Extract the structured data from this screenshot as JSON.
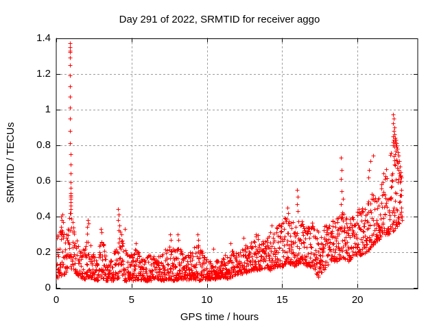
{
  "window": {
    "background": "#ffffff"
  },
  "chart_data": {
    "type": "scatter",
    "title": "Day 291 of 2022, SRMTID for receiver aggo",
    "xlabel": "GPS time / hours",
    "ylabel": "SRMTID / TECUs",
    "xlim": [
      0,
      24
    ],
    "ylim": [
      0,
      1.4
    ],
    "xticks": [
      0,
      5,
      10,
      15,
      20
    ],
    "xtick_labels": [
      "0",
      "5",
      "10",
      "15",
      "20"
    ],
    "yticks": [
      0,
      0.2,
      0.4,
      0.6,
      0.8,
      1.0,
      1.2,
      1.4
    ],
    "ytick_labels": [
      "0",
      "0.2",
      "0.4",
      "0.6",
      "0.8",
      "1",
      "1.2",
      "1.4"
    ],
    "grid": true,
    "legend": "none",
    "marker": "+",
    "marker_size": 7,
    "colors": {
      "points": "#ff0000",
      "axis": "#000000",
      "grid": "#9a9a9a",
      "text": "#000000"
    },
    "data_x_end": 22.95,
    "feature_points": [
      [
        0.9,
        1.37
      ],
      [
        0.91,
        1.35
      ],
      [
        0.9,
        1.33
      ],
      [
        0.91,
        1.32
      ],
      [
        0.9,
        1.29
      ],
      [
        0.91,
        1.25
      ],
      [
        0.91,
        1.19
      ],
      [
        0.92,
        1.13
      ],
      [
        0.92,
        1.07
      ],
      [
        0.92,
        1.01
      ],
      [
        0.93,
        0.95
      ],
      [
        0.93,
        0.88
      ],
      [
        0.93,
        0.81
      ],
      [
        0.94,
        0.75
      ],
      [
        0.94,
        0.69
      ],
      [
        0.94,
        0.64
      ],
      [
        0.95,
        0.59
      ],
      [
        0.95,
        0.56
      ],
      [
        0.95,
        0.53
      ],
      [
        0.96,
        0.52
      ],
      [
        0.95,
        0.51
      ],
      [
        0.96,
        0.5
      ],
      [
        0.96,
        0.48
      ],
      [
        0.95,
        0.46
      ],
      [
        0.97,
        0.44
      ],
      [
        0.96,
        0.42
      ],
      [
        0.33,
        0.4
      ],
      [
        0.4,
        0.41
      ],
      [
        0.36,
        0.38
      ],
      [
        0.45,
        0.37
      ],
      [
        2.08,
        0.38
      ],
      [
        2.12,
        0.36
      ],
      [
        2.05,
        0.34
      ],
      [
        2.98,
        0.33
      ],
      [
        3.02,
        0.31
      ],
      [
        4.12,
        0.44
      ],
      [
        4.16,
        0.41
      ],
      [
        4.1,
        0.38
      ],
      [
        4.2,
        0.35
      ],
      [
        4.55,
        0.33
      ],
      [
        5.3,
        0.25
      ],
      [
        7.58,
        0.3
      ],
      [
        7.62,
        0.27
      ],
      [
        8.08,
        0.3
      ],
      [
        8.12,
        0.27
      ],
      [
        9.38,
        0.3
      ],
      [
        9.42,
        0.27
      ],
      [
        10.45,
        0.22
      ],
      [
        11.55,
        0.25
      ],
      [
        12.45,
        0.28
      ],
      [
        13.25,
        0.3
      ],
      [
        14.3,
        0.35
      ],
      [
        15.35,
        0.45
      ],
      [
        15.38,
        0.42
      ],
      [
        16.0,
        0.55
      ],
      [
        16.02,
        0.51
      ],
      [
        15.98,
        0.47
      ],
      [
        16.01,
        0.43
      ],
      [
        18.92,
        0.73
      ],
      [
        18.94,
        0.66
      ],
      [
        18.9,
        0.61
      ],
      [
        18.93,
        0.54
      ],
      [
        18.91,
        0.47
      ],
      [
        18.95,
        0.41
      ],
      [
        19.05,
        0.5
      ],
      [
        21.05,
        0.74
      ],
      [
        20.85,
        0.71
      ],
      [
        20.75,
        0.66
      ],
      [
        20.7,
        0.62
      ],
      [
        22.38,
        0.97
      ],
      [
        22.4,
        0.95
      ],
      [
        22.42,
        0.95
      ],
      [
        22.37,
        0.92
      ],
      [
        22.44,
        0.9
      ],
      [
        22.4,
        0.88
      ],
      [
        22.46,
        0.86
      ],
      [
        22.36,
        0.85
      ],
      [
        22.5,
        0.84
      ],
      [
        22.42,
        0.83
      ],
      [
        22.55,
        0.83
      ],
      [
        22.38,
        0.82
      ],
      [
        22.48,
        0.82
      ],
      [
        22.6,
        0.81
      ],
      [
        22.44,
        0.81
      ],
      [
        22.52,
        0.8
      ],
      [
        22.35,
        0.8
      ],
      [
        22.58,
        0.79
      ],
      [
        22.47,
        0.79
      ],
      [
        22.63,
        0.78
      ],
      [
        22.55,
        0.77
      ],
      [
        22.68,
        0.76
      ],
      [
        22.5,
        0.75
      ],
      [
        22.72,
        0.74
      ],
      [
        22.6,
        0.72
      ],
      [
        22.78,
        0.71
      ],
      [
        22.66,
        0.7
      ],
      [
        22.82,
        0.68
      ],
      [
        22.74,
        0.66
      ],
      [
        22.86,
        0.65
      ],
      [
        22.8,
        0.63
      ],
      [
        22.88,
        0.62
      ],
      [
        22.84,
        0.6
      ],
      [
        22.9,
        0.55
      ],
      [
        22.92,
        0.52
      ]
    ],
    "band_keypoints": [
      [
        0.0,
        0.05,
        0.33
      ],
      [
        0.15,
        0.06,
        0.3
      ],
      [
        0.35,
        0.07,
        0.36
      ],
      [
        0.6,
        0.08,
        0.28
      ],
      [
        0.9,
        0.12,
        0.42
      ],
      [
        1.1,
        0.1,
        0.38
      ],
      [
        1.3,
        0.08,
        0.28
      ],
      [
        1.6,
        0.06,
        0.2
      ],
      [
        1.9,
        0.05,
        0.24
      ],
      [
        2.1,
        0.06,
        0.34
      ],
      [
        2.4,
        0.05,
        0.2
      ],
      [
        2.7,
        0.04,
        0.18
      ],
      [
        3.0,
        0.05,
        0.3
      ],
      [
        3.3,
        0.04,
        0.18
      ],
      [
        3.7,
        0.04,
        0.16
      ],
      [
        4.0,
        0.05,
        0.25
      ],
      [
        4.2,
        0.06,
        0.36
      ],
      [
        4.5,
        0.04,
        0.22
      ],
      [
        5.0,
        0.04,
        0.2
      ],
      [
        5.4,
        0.05,
        0.23
      ],
      [
        5.8,
        0.04,
        0.16
      ],
      [
        6.2,
        0.04,
        0.2
      ],
      [
        6.6,
        0.05,
        0.17
      ],
      [
        7.0,
        0.04,
        0.2
      ],
      [
        7.4,
        0.05,
        0.24
      ],
      [
        7.8,
        0.04,
        0.22
      ],
      [
        8.1,
        0.05,
        0.25
      ],
      [
        8.5,
        0.04,
        0.18
      ],
      [
        8.9,
        0.05,
        0.22
      ],
      [
        9.4,
        0.04,
        0.26
      ],
      [
        9.8,
        0.05,
        0.18
      ],
      [
        10.2,
        0.05,
        0.15
      ],
      [
        10.6,
        0.05,
        0.16
      ],
      [
        11.0,
        0.06,
        0.17
      ],
      [
        11.4,
        0.05,
        0.2
      ],
      [
        11.8,
        0.07,
        0.22
      ],
      [
        12.2,
        0.08,
        0.21
      ],
      [
        12.6,
        0.08,
        0.25
      ],
      [
        13.0,
        0.1,
        0.27
      ],
      [
        13.4,
        0.1,
        0.3
      ],
      [
        13.8,
        0.11,
        0.26
      ],
      [
        14.2,
        0.1,
        0.32
      ],
      [
        14.6,
        0.12,
        0.34
      ],
      [
        15.0,
        0.12,
        0.38
      ],
      [
        15.4,
        0.14,
        0.42
      ],
      [
        15.8,
        0.12,
        0.36
      ],
      [
        16.2,
        0.14,
        0.4
      ],
      [
        16.6,
        0.12,
        0.34
      ],
      [
        17.0,
        0.12,
        0.37
      ],
      [
        17.4,
        0.06,
        0.34
      ],
      [
        17.8,
        0.1,
        0.38
      ],
      [
        18.2,
        0.14,
        0.37
      ],
      [
        18.6,
        0.15,
        0.4
      ],
      [
        19.0,
        0.17,
        0.43
      ],
      [
        19.4,
        0.15,
        0.4
      ],
      [
        19.8,
        0.19,
        0.44
      ],
      [
        20.2,
        0.18,
        0.46
      ],
      [
        20.6,
        0.2,
        0.5
      ],
      [
        21.0,
        0.24,
        0.54
      ],
      [
        21.4,
        0.27,
        0.58
      ],
      [
        21.8,
        0.3,
        0.66
      ],
      [
        22.2,
        0.3,
        0.76
      ],
      [
        22.6,
        0.34,
        0.76
      ],
      [
        22.95,
        0.38,
        0.6
      ]
    ],
    "points_per_hour": 85,
    "seed": 291
  }
}
